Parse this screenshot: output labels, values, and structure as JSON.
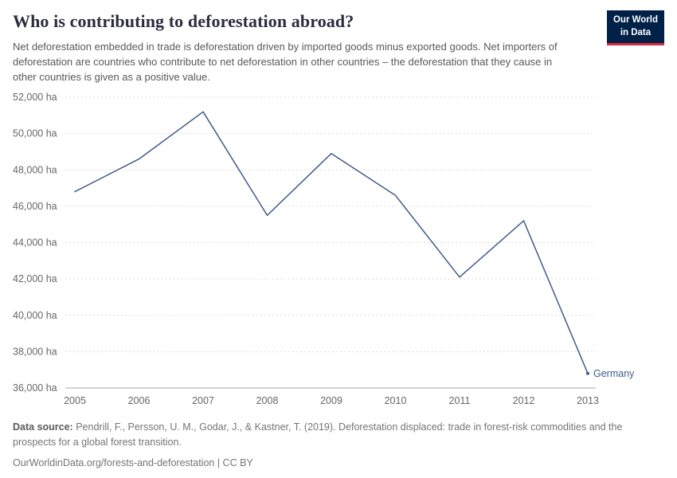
{
  "header": {
    "title": "Who is contributing to deforestation abroad?",
    "subtitle": "Net deforestation embedded in trade is deforestation driven by imported goods minus exported goods. Net importers of deforestation are countries who contribute to net deforestation in other countries – the deforestation that they cause in other countries is given as a positive value."
  },
  "logo": {
    "line1": "Our World",
    "line2": "in Data",
    "bg": "#002147",
    "accent": "#d7263d"
  },
  "chart_data": {
    "type": "line",
    "title": "Who is contributing to deforestation abroad?",
    "x": [
      2005,
      2006,
      2007,
      2008,
      2009,
      2010,
      2011,
      2012,
      2013
    ],
    "series": [
      {
        "name": "Germany",
        "color": "#415c8c",
        "values": [
          46800,
          48600,
          51200,
          45500,
          48900,
          46600,
          42100,
          45200,
          36800
        ]
      }
    ],
    "ylim": [
      36000,
      52000
    ],
    "ytick_step": 2000,
    "ytick_suffix": " ha",
    "grid": true,
    "grid_style": "dotted",
    "legend": "end-of-line-label",
    "xlabel": "",
    "ylabel": ""
  },
  "footer": {
    "source_label": "Data source:",
    "source_text": "Pendrill, F., Persson, U. M., Godar, J., & Kastner, T. (2019). Deforestation displaced: trade in forest-risk commodities and the prospects for a global forest transition.",
    "link_line": "OurWorldinData.org/forests-and-deforestation | CC BY"
  }
}
